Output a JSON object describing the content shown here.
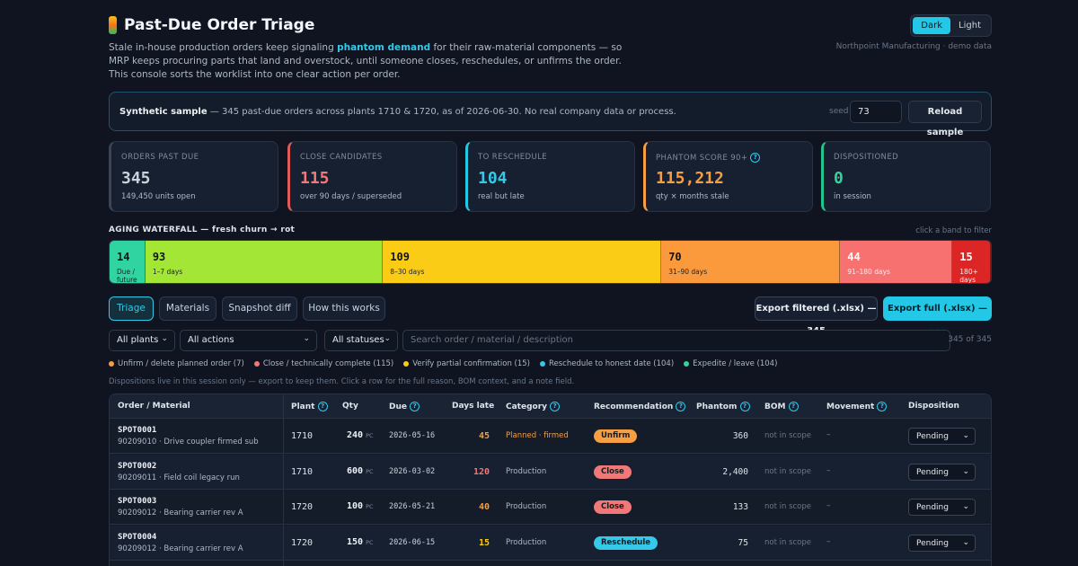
{
  "header": {
    "title": "Past-Due Order Triage",
    "subtitle_pre": "Stale in-house production orders keep signaling ",
    "subtitle_accent": "phantom demand",
    "subtitle_post": " for their raw-material components — so MRP keeps procuring parts that land and overstock, until someone closes, reschedules, or unfirms the order. This console sorts the worklist into one clear action per order.",
    "brand_note": "Northpoint Manufacturing · demo data",
    "theme": {
      "dark": "Dark",
      "light": "Light",
      "active": "dark"
    }
  },
  "sample": {
    "bold": "Synthetic sample",
    "text": " — 345 past-due orders across plants 1710 & 1720, as of 2026-06-30. No real company data or process.",
    "seed_label": "seed",
    "seed_value": "73",
    "reload_label": "Reload sample"
  },
  "kpis": [
    {
      "label": "ORDERS PAST DUE",
      "value": "345",
      "sub": "149,450 units open",
      "color": "#c9d1dc",
      "border": "#3a4558"
    },
    {
      "label": "CLOSE CANDIDATES",
      "value": "115",
      "sub": "over 90 days / superseded",
      "color": "#f07878",
      "border": "#e05a5a"
    },
    {
      "label": "TO RESCHEDULE",
      "value": "104",
      "sub": "real but late",
      "color": "#35c8e8",
      "border": "#22c8e5"
    },
    {
      "label": "PHANTOM SCORE 90+",
      "value": "115,212",
      "sub": "qty × months stale",
      "color": "#f59e42",
      "border": "#f59e42",
      "help": "?"
    },
    {
      "label": "DISPOSITIONED",
      "value": "0",
      "sub": "in session",
      "color": "#34d39a",
      "border": "#22c58a"
    }
  ],
  "waterfall": {
    "title": "AGING WATERFALL — fresh churn → rot",
    "hint": "click a band to filter",
    "bands": [
      {
        "count": "14",
        "range": "Due / future",
        "color": "#2fd4a0",
        "fraction": 0.0406
      },
      {
        "count": "93",
        "range": "1–7 days",
        "color": "#a3e635",
        "fraction": 0.2696
      },
      {
        "count": "109",
        "range": "8–30 days",
        "color": "#facc15",
        "fraction": 0.3159
      },
      {
        "count": "70",
        "range": "31–90 days",
        "color": "#fb9a3c",
        "fraction": 0.2029
      },
      {
        "count": "44",
        "range": "91–180 days",
        "color": "#f87171",
        "fraction": 0.1275
      },
      {
        "count": "15",
        "range": "180+ days",
        "color": "#dc2626",
        "fraction": 0.0435
      }
    ]
  },
  "tabs": [
    "Triage",
    "Materials",
    "Snapshot diff",
    "How this works"
  ],
  "export": {
    "filtered": "Export filtered (.xlsx) — 345",
    "full": "Export full (.xlsx) — 345"
  },
  "filters": {
    "plants": "All plants",
    "actions": "All actions",
    "statuses": "All statuses",
    "search_placeholder": "Search order / material / description",
    "count": "345 of 345"
  },
  "legend": [
    {
      "label": "Unfirm / delete planned order (7)",
      "color": "#f59e42"
    },
    {
      "label": "Close / technically complete (115)",
      "color": "#f07878"
    },
    {
      "label": "Verify partial confirmation (15)",
      "color": "#facc15"
    },
    {
      "label": "Reschedule to honest date (104)",
      "color": "#35c8e8"
    },
    {
      "label": "Expedite / leave (104)",
      "color": "#34d39a"
    }
  ],
  "note": "Dispositions live in this session only — export to keep them. Click a row for the full reason, BOM context, and a note field.",
  "table": {
    "headers": {
      "order": "Order / Material",
      "plant": "Plant",
      "qty": "Qty",
      "due": "Due",
      "days": "Days late",
      "category": "Category",
      "rec": "Recommendation",
      "phantom": "Phantom",
      "bom": "BOM",
      "movement": "Movement",
      "disposition": "Disposition"
    },
    "rows": [
      {
        "id": "SPOT0001",
        "desc": "90209010 · Drive coupler firmed sub",
        "plant": "1710",
        "qty": "240",
        "uom": "PC",
        "due": "2026-05-16",
        "days": "45",
        "days_color": "#f59e42",
        "category": "Planned · firmed",
        "cat_color": "#f59e42",
        "rec": "Unfirm",
        "rec_color": "#f59e42",
        "phantom": "360",
        "bom": "not in scope",
        "movement": "–",
        "disposition": "Pending"
      },
      {
        "id": "SPOT0002",
        "desc": "90209011 · Field coil legacy run",
        "plant": "1710",
        "qty": "600",
        "uom": "PC",
        "due": "2026-03-02",
        "days": "120",
        "days_color": "#f07878",
        "category": "Production",
        "cat_color": "#aeb8c6",
        "rec": "Close",
        "rec_color": "#f07878",
        "phantom": "2,400",
        "bom": "not in scope",
        "movement": "–",
        "disposition": "Pending"
      },
      {
        "id": "SPOT0003",
        "desc": "90209012 · Bearing carrier rev A",
        "plant": "1720",
        "qty": "100",
        "uom": "PC",
        "due": "2026-05-21",
        "days": "40",
        "days_color": "#f59e42",
        "category": "Production",
        "cat_color": "#aeb8c6",
        "rec": "Close",
        "rec_color": "#f07878",
        "phantom": "133",
        "bom": "not in scope",
        "movement": "–",
        "disposition": "Pending"
      },
      {
        "id": "SPOT0004",
        "desc": "90209012 · Bearing carrier rev A",
        "plant": "1720",
        "qty": "150",
        "uom": "PC",
        "due": "2026-06-15",
        "days": "15",
        "days_color": "#facc15",
        "category": "Production",
        "cat_color": "#aeb8c6",
        "rec": "Reschedule",
        "rec_color": "#35c8e8",
        "phantom": "75",
        "bom": "not in scope",
        "movement": "–",
        "disposition": "Pending"
      }
    ]
  }
}
